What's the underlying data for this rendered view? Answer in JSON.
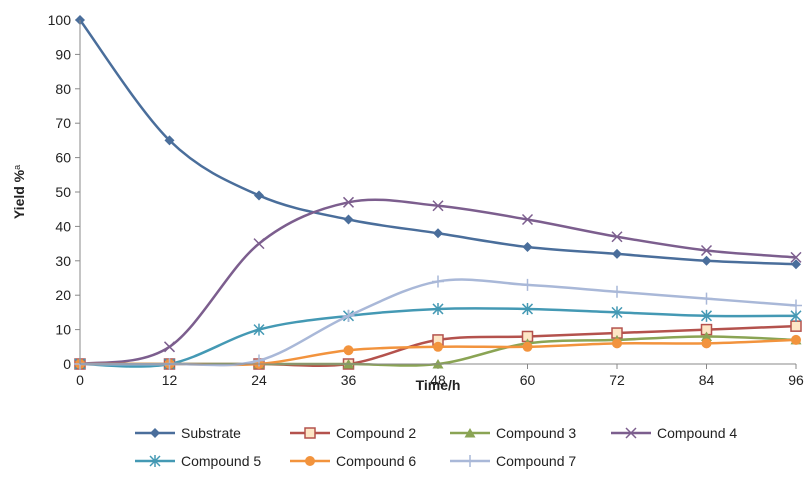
{
  "chart_data": {
    "type": "line",
    "title": "",
    "xlabel": "Time/h",
    "ylabel": "Yield %",
    "ylabel_superscript": "a",
    "x": [
      0,
      12,
      24,
      36,
      48,
      60,
      72,
      84,
      96
    ],
    "xlim": [
      0,
      96
    ],
    "ylim": [
      0,
      100
    ],
    "xticks": [
      "0",
      "12",
      "24",
      "36",
      "48",
      "60",
      "72",
      "84",
      "96"
    ],
    "yticks": [
      "0",
      "10",
      "20",
      "30",
      "40",
      "50",
      "60",
      "70",
      "80",
      "90",
      "100"
    ],
    "grid": false,
    "legend_position": "bottom",
    "series": [
      {
        "name": "Substrate",
        "color": "#4a6e9b",
        "marker": "diamond",
        "values": [
          100,
          65,
          49,
          42,
          38,
          34,
          32,
          30,
          29
        ]
      },
      {
        "name": "Compound 2",
        "color": "#b4524d",
        "marker": "square",
        "values": [
          0,
          0,
          0,
          0,
          7,
          8,
          9,
          10,
          11
        ]
      },
      {
        "name": "Compound 3",
        "color": "#8aa454",
        "marker": "triangle",
        "values": [
          0,
          0,
          0,
          0,
          0,
          6,
          7,
          8,
          7
        ]
      },
      {
        "name": "Compound 4",
        "color": "#7c5e8e",
        "marker": "x",
        "values": [
          0,
          5,
          35,
          47,
          46,
          42,
          37,
          33,
          31
        ]
      },
      {
        "name": "Compound 5",
        "color": "#4499b4",
        "marker": "star",
        "values": [
          0,
          0,
          10,
          14,
          16,
          16,
          15,
          14,
          14
        ]
      },
      {
        "name": "Compound 6",
        "color": "#f2933d",
        "marker": "circle",
        "values": [
          0,
          0,
          0,
          4,
          5,
          5,
          6,
          6,
          7
        ]
      },
      {
        "name": "Compound 7",
        "color": "#a9b8d8",
        "marker": "plus",
        "values": [
          0,
          0,
          1,
          14,
          24,
          23,
          21,
          19,
          17
        ]
      }
    ]
  }
}
